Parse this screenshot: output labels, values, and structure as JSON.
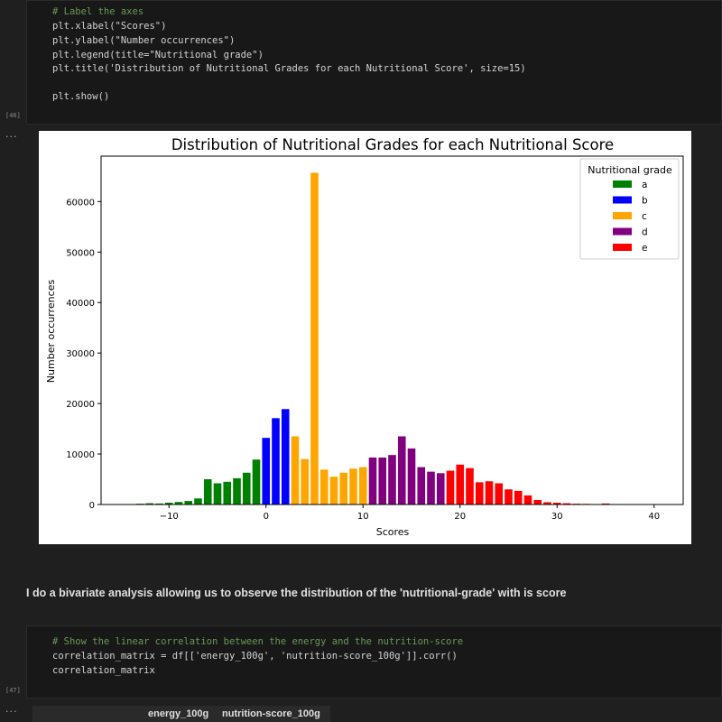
{
  "cell1": {
    "exec_count": "[46]",
    "lines": [
      "# Label the axes",
      "plt.xlabel(\"Scores\")",
      "plt.ylabel(\"Number occurrences\")",
      "plt.legend(title=\"Nutritional grade\")",
      "plt.title('Distribution of Nutritional Grades for each Nutritional Score', size=15)",
      "",
      "plt.show()"
    ]
  },
  "output1": {
    "dots": "..."
  },
  "chart_data": {
    "type": "bar",
    "title": "Distribution of Nutritional Grades for each Nutritional Score",
    "xlabel": "Scores",
    "ylabel": "Number occurrences",
    "xlim": [
      -17,
      43
    ],
    "ylim": [
      0,
      69000
    ],
    "xticks": [
      -10,
      0,
      10,
      20,
      30,
      40
    ],
    "yticks": [
      0,
      10000,
      20000,
      30000,
      40000,
      50000,
      60000
    ],
    "xtick_labels": [
      "−10",
      "0",
      "10",
      "20",
      "30",
      "40"
    ],
    "ytick_labels": [
      "0",
      "10000",
      "20000",
      "30000",
      "40000",
      "50000",
      "60000"
    ],
    "legend": {
      "title": "Nutritional grade",
      "position": "top-right"
    },
    "series": [
      {
        "name": "a",
        "color": "#008000",
        "x": [
          -15,
          -14,
          -13,
          -12,
          -11,
          -10,
          -9,
          -8,
          -7,
          -6,
          -5,
          -4,
          -3,
          -2,
          -1
        ],
        "values": [
          50,
          80,
          150,
          250,
          200,
          350,
          500,
          700,
          1200,
          5000,
          4200,
          4500,
          5200,
          6300,
          8900
        ]
      },
      {
        "name": "b",
        "color": "#0000ff",
        "x": [
          0,
          1,
          2
        ],
        "values": [
          13200,
          17100,
          18900
        ]
      },
      {
        "name": "c",
        "color": "#ffa500",
        "x": [
          3,
          4,
          5,
          6,
          7,
          8,
          9,
          10
        ],
        "values": [
          13500,
          9000,
          65700,
          6900,
          5500,
          6300,
          7100,
          7400
        ]
      },
      {
        "name": "d",
        "color": "#800080",
        "x": [
          11,
          12,
          13,
          14,
          15,
          16,
          17,
          18
        ],
        "values": [
          9300,
          9300,
          9800,
          13500,
          11100,
          7400,
          6500,
          6200
        ]
      },
      {
        "name": "e",
        "color": "#ff0000",
        "x": [
          19,
          20,
          21,
          22,
          23,
          24,
          25,
          26,
          27,
          28,
          29,
          30,
          31,
          32,
          33,
          34,
          35,
          36,
          37,
          38,
          39
        ],
        "values": [
          6700,
          7900,
          7200,
          4400,
          4600,
          4200,
          3000,
          2700,
          1800,
          900,
          450,
          350,
          250,
          150,
          120,
          80,
          200,
          60,
          40,
          30,
          20
        ]
      }
    ]
  },
  "markdown": {
    "text": "I do a bivariate analysis allowing us to observe the distribution of the 'nutritional-grade' with is score"
  },
  "cell2": {
    "exec_count": "[47]",
    "lines": [
      "# Show the linear correlation between the energy and the nutrition-score",
      "correlation_matrix = df[['energy_100g', 'nutrition-score_100g']].corr()",
      "correlation_matrix"
    ]
  },
  "output2": {
    "dots": "...",
    "columns": [
      "energy_100g",
      "nutrition-score_100g"
    ]
  }
}
